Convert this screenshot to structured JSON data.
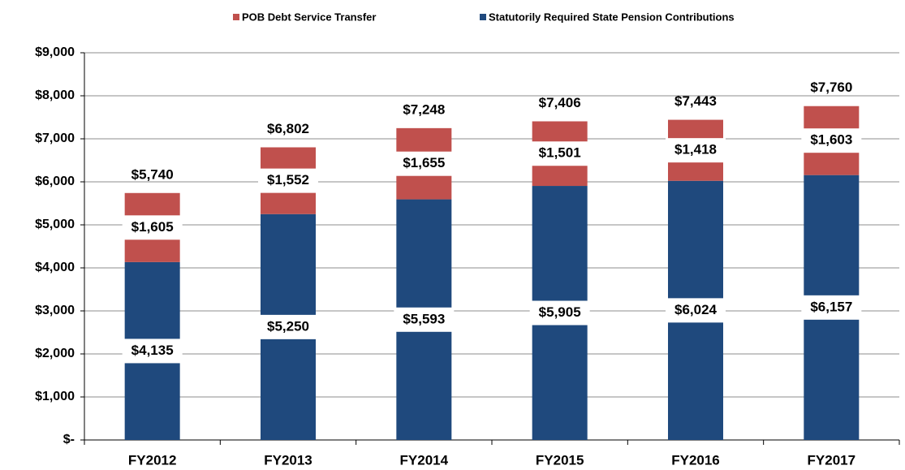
{
  "chart_data": {
    "type": "stacked_bar",
    "categories": [
      "FY2012",
      "FY2013",
      "FY2014",
      "FY2015",
      "FY2016",
      "FY2017"
    ],
    "series": [
      {
        "name": "POB Debt Service Transfer",
        "color": "#c0504d",
        "values": [
          1605,
          1552,
          1655,
          1501,
          1418,
          1603
        ],
        "value_labels": [
          "$1,605",
          "$1,552",
          "$1,655",
          "$1,501",
          "$1,418",
          "$1,603"
        ]
      },
      {
        "name": "Statutorily Required State Pension Contributions",
        "color": "#1f497d",
        "values": [
          4135,
          5250,
          5593,
          5905,
          6024,
          6157
        ],
        "value_labels": [
          "$4,135",
          "$5,250",
          "$5,593",
          "$5,905",
          "$6,024",
          "$6,157"
        ]
      }
    ],
    "totals": [
      5740,
      6802,
      7248,
      7406,
      7443,
      7760
    ],
    "total_labels": [
      "$5,740",
      "$6,802",
      "$7,248",
      "$7,406",
      "$7,443",
      "$7,760"
    ],
    "ylim": [
      0,
      9000
    ],
    "yticks": [
      {
        "value": 0,
        "label": "$-"
      },
      {
        "value": 1000,
        "label": "$1,000"
      },
      {
        "value": 2000,
        "label": "$2,000"
      },
      {
        "value": 3000,
        "label": "$3,000"
      },
      {
        "value": 4000,
        "label": "$4,000"
      },
      {
        "value": 5000,
        "label": "$5,000"
      },
      {
        "value": 6000,
        "label": "$6,000"
      },
      {
        "value": 7000,
        "label": "$7,000"
      },
      {
        "value": 8000,
        "label": "$8,000"
      },
      {
        "value": 9000,
        "label": "$9,000"
      }
    ],
    "grid": true,
    "legend": "top"
  }
}
